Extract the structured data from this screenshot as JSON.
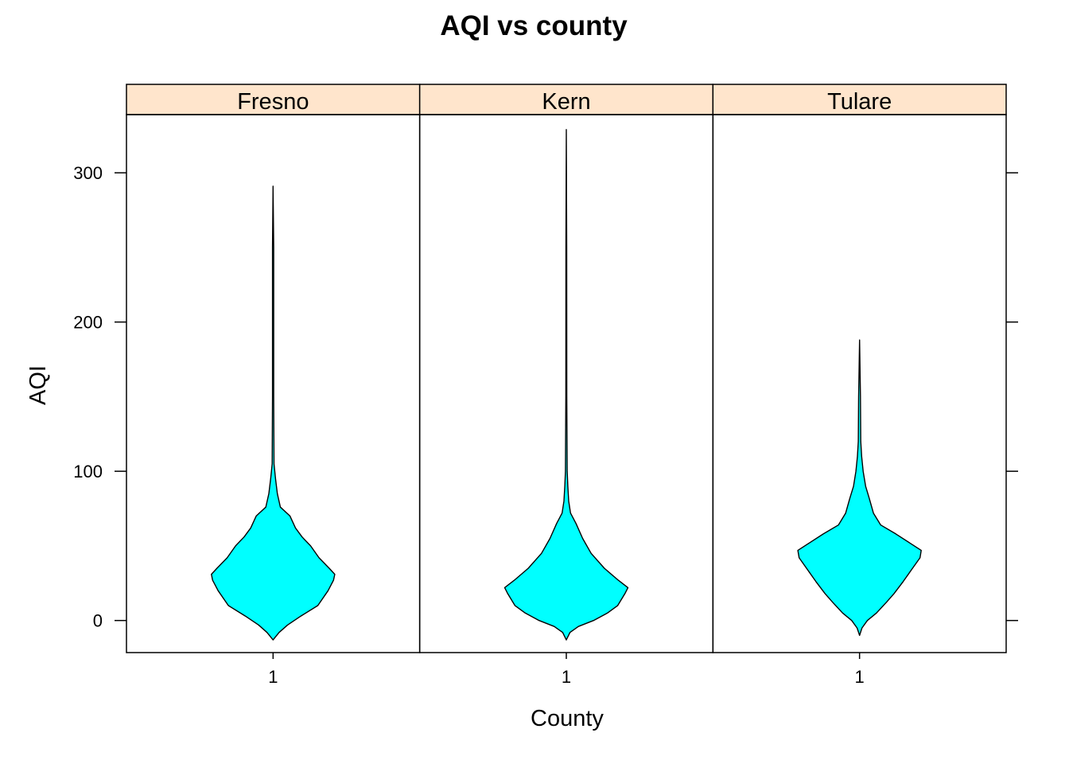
{
  "chart_data": {
    "type": "violin",
    "title": "AQI vs county",
    "xlabel": "County",
    "ylabel": "AQI",
    "ylim": [
      -21.5,
      339
    ],
    "yticks": [
      0,
      100,
      200,
      300
    ],
    "ytick_labels": [
      "0",
      "100",
      "200",
      "300"
    ],
    "grid": false,
    "legend": "none",
    "colors": {
      "fill": "#00ffff",
      "strip": "#ffe5cc",
      "stroke": "#000000"
    },
    "panels": [
      {
        "name": "Fresno",
        "x_tick_label": "1",
        "profile": [
          [
            -13,
            0.0
          ],
          [
            -8,
            0.1
          ],
          [
            -3,
            0.24
          ],
          [
            3,
            0.46
          ],
          [
            10,
            0.74
          ],
          [
            20,
            0.91
          ],
          [
            27,
            1.0
          ],
          [
            31,
            1.02
          ],
          [
            35,
            0.93
          ],
          [
            42,
            0.76
          ],
          [
            50,
            0.62
          ],
          [
            56,
            0.48
          ],
          [
            62,
            0.37
          ],
          [
            70,
            0.28
          ],
          [
            76,
            0.12
          ],
          [
            85,
            0.07
          ],
          [
            95,
            0.04
          ],
          [
            105,
            0.015
          ],
          [
            150,
            0.01
          ],
          [
            250,
            0.01
          ],
          [
            291,
            0.0
          ]
        ]
      },
      {
        "name": "Kern",
        "x_tick_label": "1",
        "profile": [
          [
            -13,
            0.0
          ],
          [
            -8,
            0.06
          ],
          [
            -4,
            0.2
          ],
          [
            0,
            0.45
          ],
          [
            5,
            0.68
          ],
          [
            10,
            0.85
          ],
          [
            18,
            0.97
          ],
          [
            22,
            1.02
          ],
          [
            27,
            0.86
          ],
          [
            35,
            0.63
          ],
          [
            45,
            0.41
          ],
          [
            55,
            0.27
          ],
          [
            65,
            0.16
          ],
          [
            72,
            0.07
          ],
          [
            80,
            0.04
          ],
          [
            90,
            0.025
          ],
          [
            100,
            0.015
          ],
          [
            150,
            0.008
          ],
          [
            250,
            0.006
          ],
          [
            329,
            0.0
          ]
        ]
      },
      {
        "name": "Tulare",
        "x_tick_label": "1",
        "profile": [
          [
            -10,
            0.0
          ],
          [
            -5,
            0.04
          ],
          [
            0,
            0.13
          ],
          [
            5,
            0.28
          ],
          [
            12,
            0.44
          ],
          [
            18,
            0.57
          ],
          [
            26,
            0.72
          ],
          [
            34,
            0.86
          ],
          [
            42,
            1.0
          ],
          [
            47,
            1.02
          ],
          [
            52,
            0.83
          ],
          [
            58,
            0.6
          ],
          [
            64,
            0.35
          ],
          [
            72,
            0.23
          ],
          [
            82,
            0.16
          ],
          [
            90,
            0.1
          ],
          [
            100,
            0.06
          ],
          [
            110,
            0.035
          ],
          [
            120,
            0.02
          ],
          [
            150,
            0.015
          ],
          [
            188,
            0.0
          ]
        ]
      }
    ]
  }
}
